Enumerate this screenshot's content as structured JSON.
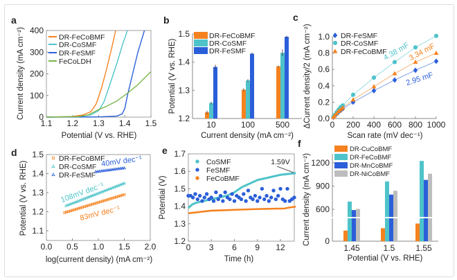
{
  "colors": {
    "orange": "#F5821F",
    "cyan": "#4EC3C9",
    "blue": "#2B5FD9",
    "green": "#7AB648",
    "gray": "#BDBDBD"
  },
  "chart_data": [
    {
      "panel": "a",
      "type": "line",
      "xlabel": "Potential (V vs. RHE)",
      "ylabel": "Current density (mA cm⁻²)",
      "xlim": [
        1.1,
        1.5
      ],
      "ylim": [
        0,
        400
      ],
      "xticks": [
        "1.1",
        "1.2",
        "1.3",
        "1.4",
        "1.5"
      ],
      "yticks": [
        "0",
        "100",
        "200",
        "300",
        "400"
      ],
      "legend": "top-left",
      "series": [
        {
          "name": "DR-FeCoBMF",
          "color": "orange",
          "x": [
            1.1,
            1.2,
            1.24,
            1.27,
            1.29,
            1.31,
            1.33,
            1.35,
            1.365
          ],
          "y": [
            0,
            3,
            10,
            25,
            60,
            130,
            220,
            320,
            400
          ]
        },
        {
          "name": "DR-CoSMF",
          "color": "cyan",
          "x": [
            1.1,
            1.22,
            1.27,
            1.3,
            1.32,
            1.34,
            1.37,
            1.39,
            1.41
          ],
          "y": [
            0,
            2,
            10,
            30,
            70,
            140,
            250,
            330,
            400
          ]
        },
        {
          "name": "DR-FeSMF",
          "color": "blue",
          "x": [
            1.1,
            1.3,
            1.37,
            1.39,
            1.4,
            1.41,
            1.43,
            1.45,
            1.475
          ],
          "y": [
            0,
            1,
            5,
            15,
            40,
            100,
            200,
            300,
            400
          ]
        },
        {
          "name": "FeCoLDH",
          "color": "green",
          "x": [
            1.1,
            1.22,
            1.26,
            1.3,
            1.33,
            1.37,
            1.41,
            1.45,
            1.5
          ],
          "y": [
            0,
            2,
            10,
            35,
            50,
            75,
            110,
            150,
            210
          ]
        }
      ]
    },
    {
      "panel": "b",
      "type": "bar",
      "xlabel": "Current density (mA cm⁻²)",
      "ylabel": "Potential (V vs. RHE)",
      "ylim": [
        1.2,
        1.5
      ],
      "yticks": [
        "1.2",
        "1.3",
        "1.4",
        "1.5"
      ],
      "categories": [
        "10",
        "100",
        "500"
      ],
      "legend": "top-left",
      "series": [
        {
          "name": "DR-FeCoBMF",
          "color": "orange",
          "values": [
            1.222,
            1.302,
            1.385
          ],
          "err": [
            0.006,
            0.005,
            0.003
          ]
        },
        {
          "name": "DR-CoSMF",
          "color": "cyan",
          "values": [
            1.255,
            1.335,
            1.433
          ],
          "err": [
            0.005,
            0.005,
            0.012
          ]
        },
        {
          "name": "DR-FeSMF",
          "color": "blue",
          "values": [
            1.383,
            1.43,
            1.49
          ],
          "err": [
            0.008,
            0.004,
            0.004
          ]
        }
      ]
    },
    {
      "panel": "c",
      "type": "scatter",
      "xlabel": "Scan rate (mV dec⁻¹)",
      "ylabel": "ΔCurrent density/2 (mA cm⁻²)",
      "xlim": [
        0,
        1000
      ],
      "ylim": [
        0,
        1.0
      ],
      "xticks": [
        "0",
        "200",
        "400",
        "600",
        "800",
        "1000"
      ],
      "yticks": [
        "0.0",
        "0.2",
        "0.4",
        "0.6",
        "0.8",
        "1.0"
      ],
      "legend": "top-left",
      "x": [
        10,
        20,
        40,
        60,
        80,
        100,
        200,
        400,
        600,
        800,
        1000
      ],
      "series": [
        {
          "name": "DR-FeSMF",
          "color": "blue",
          "marker": "diamond",
          "values": [
            0.015,
            0.03,
            0.055,
            0.08,
            0.1,
            0.12,
            0.2,
            0.34,
            0.47,
            0.59,
            0.7
          ],
          "annotation": "2.95 mF"
        },
        {
          "name": "DR-CoSMF",
          "color": "cyan",
          "marker": "circle",
          "values": [
            0.02,
            0.04,
            0.075,
            0.11,
            0.14,
            0.16,
            0.29,
            0.5,
            0.69,
            0.87,
            1.01
          ],
          "annotation": "4.38 mF"
        },
        {
          "name": "DR-FeCoBMF",
          "color": "orange",
          "marker": "triangle",
          "values": [
            0.016,
            0.033,
            0.06,
            0.09,
            0.11,
            0.13,
            0.23,
            0.39,
            0.55,
            0.69,
            0.8
          ],
          "annotation": "3.34 mF"
        }
      ]
    },
    {
      "panel": "d",
      "type": "scatter",
      "xlabel": "log(current density) (mA cm⁻²)",
      "ylabel": "Potential (V vs. RHE)",
      "xlim": [
        0,
        2.0
      ],
      "ylim": [
        1.05,
        1.5
      ],
      "xticks": [
        "0.0",
        "0.5",
        "1.0",
        "1.5",
        "2.0"
      ],
      "yticks": [
        "1.1",
        "1.2",
        "1.3",
        "1.4",
        "1.5"
      ],
      "legend": "top-left",
      "series": [
        {
          "name": "DR-FeCoBMF",
          "color": "orange",
          "marker": "square",
          "x0": 0.35,
          "x1": 1.5,
          "y0": 1.195,
          "y1": 1.29,
          "annotation": "83mV dec⁻¹"
        },
        {
          "name": "DR-CoSMF",
          "color": "cyan",
          "marker": "triangle",
          "x0": 0.38,
          "x1": 1.5,
          "y0": 1.232,
          "y1": 1.35,
          "annotation": "108mV dec⁻¹"
        },
        {
          "name": "DR-FeSMF",
          "color": "blue",
          "marker": "triangle",
          "x0": 0.95,
          "x1": 1.5,
          "y0": 1.41,
          "y1": 1.43,
          "annotation": "40mV dec⁻¹"
        }
      ]
    },
    {
      "panel": "e",
      "type": "scatter",
      "xlabel": "Time (h)",
      "ylabel": "Potential (V)",
      "xlim": [
        0,
        14
      ],
      "ylim": [
        1.2,
        1.7
      ],
      "xticks": [
        "0",
        "3",
        "6",
        "9",
        "12"
      ],
      "yticks": [
        "1.2",
        "1.3",
        "1.4",
        "1.5",
        "1.6",
        "1.7"
      ],
      "legend": "top-left",
      "annotation": "1.59V",
      "series": [
        {
          "name": "CoSMF",
          "color": "cyan",
          "x": [
            0,
            0.5,
            1,
            2,
            3,
            4,
            5,
            6,
            7,
            8,
            9,
            10,
            11,
            12,
            13,
            14
          ],
          "y": [
            1.39,
            1.41,
            1.42,
            1.43,
            1.44,
            1.45,
            1.46,
            1.48,
            1.51,
            1.53,
            1.55,
            1.56,
            1.57,
            1.58,
            1.585,
            1.59
          ]
        },
        {
          "name": "FeSMF",
          "color": "blue",
          "x": [
            0,
            0.3,
            0.6,
            0.9,
            1.2,
            1.5,
            1.8,
            2.1,
            2.4,
            2.7,
            3,
            3.3,
            3.6,
            3.9,
            4.2,
            4.5,
            4.8,
            5.1,
            5.4,
            5.7,
            6,
            6.3,
            6.6,
            6.9,
            7.2,
            7.5,
            7.8,
            8.1,
            8.4,
            8.7,
            9,
            9.3,
            9.6,
            9.9,
            10.2,
            10.5,
            10.8,
            11.1,
            11.4,
            11.7,
            12,
            12.3,
            12.6,
            12.9,
            13.2,
            13.5,
            13.8
          ],
          "y": [
            1.46,
            1.46,
            1.45,
            1.47,
            1.44,
            1.46,
            1.43,
            1.45,
            1.47,
            1.44,
            1.45,
            1.43,
            1.48,
            1.44,
            1.46,
            1.43,
            1.48,
            1.45,
            1.44,
            1.47,
            1.43,
            1.46,
            1.45,
            1.44,
            1.47,
            1.43,
            1.49,
            1.45,
            1.44,
            1.46,
            1.43,
            1.45,
            1.5,
            1.44,
            1.46,
            1.43,
            1.45,
            1.49,
            1.44,
            1.46,
            1.5,
            1.44,
            1.43,
            1.5,
            1.43,
            1.44,
            1.45
          ]
        },
        {
          "name": "FeCoBMF",
          "color": "orange",
          "x": [
            0,
            1,
            2,
            3,
            5,
            7,
            9,
            11,
            12.5,
            13.2,
            14
          ],
          "y": [
            1.36,
            1.365,
            1.37,
            1.375,
            1.378,
            1.381,
            1.384,
            1.386,
            1.387,
            1.393,
            1.398
          ]
        }
      ]
    },
    {
      "panel": "f",
      "type": "bar",
      "xlabel": "Potential (V vs. RHE)",
      "ylabel": "Current density (mA cm⁻²)",
      "yticks": [
        "0",
        "600",
        "900",
        "1200"
      ],
      "axis_break": true,
      "categories": [
        "1.45",
        "1.5",
        "1.55"
      ],
      "legend": "top-left",
      "series": [
        {
          "name": "DR-CuCoBMF",
          "color": "orange",
          "values": [
            90,
            110,
            150
          ]
        },
        {
          "name": "DR-FeCoBMF",
          "color": "cyan",
          "values": [
            700,
            960,
            1225
          ]
        },
        {
          "name": "DR-MnCoBMF",
          "color": "blue",
          "values": [
            590,
            790,
            980
          ]
        },
        {
          "name": "DR-NiCoBMF",
          "color": "gray",
          "values": [
            605,
            840,
            1060
          ]
        }
      ]
    }
  ]
}
